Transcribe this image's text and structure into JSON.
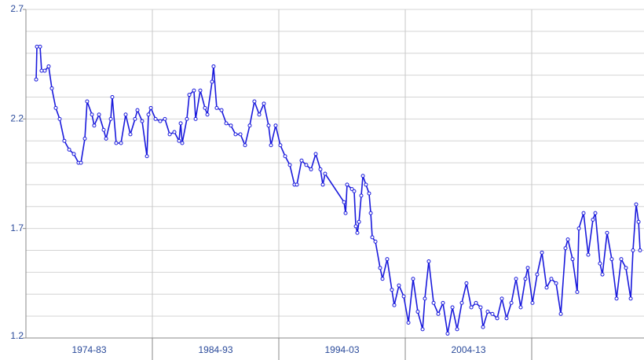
{
  "chart_data": {
    "type": "line",
    "categories": [
      "1974-83",
      "1984-93",
      "1994-03",
      "2004-13",
      null
    ],
    "xlim": [
      1974,
      2022.88
    ],
    "xticks": [
      1984,
      1994,
      2004,
      2014
    ],
    "ylim": [
      1.2,
      2.7
    ],
    "yticks": [
      1.2,
      1.7,
      2.2,
      2.7
    ],
    "minor_yticks": [
      1.3,
      1.4,
      1.5,
      1.6,
      1.8,
      1.9,
      2.0,
      2.1,
      2.3,
      2.4,
      2.5,
      2.6
    ],
    "grid": true,
    "markers": true,
    "x": [
      1974.81,
      1974.87,
      1975.12,
      1975.24,
      1975.49,
      1975.8,
      1976.05,
      1976.36,
      1976.67,
      1977.04,
      1977.42,
      1977.79,
      1978.16,
      1978.35,
      1978.66,
      1978.84,
      1979.22,
      1979.4,
      1979.78,
      1980.15,
      1980.34,
      1980.71,
      1980.83,
      1981.14,
      1981.52,
      1981.89,
      1982.26,
      1982.63,
      1982.82,
      1983.19,
      1983.57,
      1983.69,
      1983.88,
      1984.25,
      1984.62,
      1984.99,
      1985.37,
      1985.74,
      1986.11,
      1986.24,
      1986.36,
      1986.73,
      1986.92,
      1987.29,
      1987.42,
      1987.79,
      1988.16,
      1988.35,
      1988.72,
      1988.84,
      1989.09,
      1989.47,
      1989.84,
      1990.21,
      1990.58,
      1990.96,
      1991.33,
      1991.7,
      1992.07,
      1992.45,
      1992.82,
      1993.19,
      1993.38,
      1993.75,
      1994.12,
      1994.5,
      1994.87,
      1995.24,
      1995.43,
      1995.8,
      1996.17,
      1996.55,
      1996.92,
      1997.29,
      1997.48,
      1997.66,
      1999.16,
      1999.28,
      1999.4,
      1999.78,
      1999.96,
      2000.09,
      2000.21,
      2000.34,
      2000.52,
      2000.65,
      2000.89,
      2001.14,
      2001.27,
      2001.39,
      2001.64,
      2002.01,
      2002.2,
      2002.57,
      2002.94,
      2003.13,
      2003.5,
      2003.88,
      2004.25,
      2004.62,
      2004.99,
      2005.37,
      2005.55,
      2005.86,
      2006.24,
      2006.61,
      2006.98,
      2007.35,
      2007.73,
      2008.1,
      2008.47,
      2008.84,
      2009.22,
      2009.59,
      2009.96,
      2010.15,
      2010.52,
      2010.89,
      2011.27,
      2011.64,
      2012.01,
      2012.39,
      2012.76,
      2013.13,
      2013.5,
      2013.69,
      2014.06,
      2014.43,
      2014.81,
      2015.18,
      2015.55,
      2015.93,
      2016.3,
      2016.67,
      2016.86,
      2017.23,
      2017.6,
      2017.73,
      2018.1,
      2018.47,
      2018.84,
      2019.03,
      2019.4,
      2019.59,
      2019.96,
      2020.33,
      2020.71,
      2021.08,
      2021.45,
      2021.83,
      2022.01,
      2022.26,
      2022.45,
      2022.57
    ],
    "series": [
      {
        "color": "#1a1adc",
        "values": [
          2.38,
          2.53,
          2.53,
          2.42,
          2.42,
          2.44,
          2.34,
          2.25,
          2.2,
          2.1,
          2.06,
          2.04,
          2.0,
          2.0,
          2.11,
          2.28,
          2.22,
          2.17,
          2.22,
          2.15,
          2.11,
          2.2,
          2.3,
          2.09,
          2.09,
          2.22,
          2.13,
          2.2,
          2.24,
          2.19,
          2.03,
          2.22,
          2.25,
          2.2,
          2.19,
          2.2,
          2.13,
          2.14,
          2.1,
          2.18,
          2.09,
          2.2,
          2.31,
          2.33,
          2.2,
          2.33,
          2.25,
          2.22,
          2.37,
          2.44,
          2.25,
          2.24,
          2.18,
          2.17,
          2.13,
          2.13,
          2.08,
          2.17,
          2.28,
          2.22,
          2.27,
          2.17,
          2.08,
          2.17,
          2.08,
          2.03,
          1.99,
          1.9,
          1.9,
          2.01,
          1.99,
          1.97,
          2.04,
          1.97,
          1.9,
          1.95,
          1.82,
          1.77,
          1.9,
          1.88,
          1.87,
          1.71,
          1.68,
          1.73,
          1.85,
          1.94,
          1.9,
          1.86,
          1.77,
          1.66,
          1.64,
          1.52,
          1.47,
          1.56,
          1.42,
          1.35,
          1.44,
          1.39,
          1.27,
          1.47,
          1.32,
          1.24,
          1.38,
          1.55,
          1.36,
          1.31,
          1.36,
          1.22,
          1.34,
          1.24,
          1.36,
          1.45,
          1.34,
          1.36,
          1.34,
          1.25,
          1.32,
          1.31,
          1.29,
          1.38,
          1.29,
          1.36,
          1.47,
          1.34,
          1.47,
          1.52,
          1.36,
          1.49,
          1.59,
          1.43,
          1.47,
          1.45,
          1.31,
          1.61,
          1.65,
          1.56,
          1.41,
          1.7,
          1.77,
          1.58,
          1.74,
          1.77,
          1.54,
          1.49,
          1.68,
          1.56,
          1.38,
          1.56,
          1.52,
          1.38,
          1.6,
          1.81,
          1.73,
          1.6
        ]
      }
    ]
  }
}
